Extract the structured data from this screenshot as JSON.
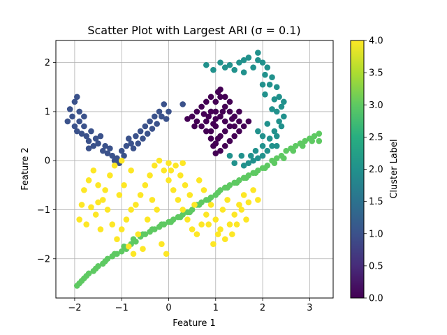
{
  "chart_data": {
    "type": "scatter",
    "title": "Scatter Plot with Largest ARI (σ = 0.1)",
    "xlabel": "Feature 1",
    "ylabel": "Feature 2",
    "xlim": [
      -2.4,
      3.5
    ],
    "ylim": [
      -2.8,
      2.45
    ],
    "xticks": [
      -2,
      -1,
      0,
      1,
      2,
      3
    ],
    "yticks": [
      -2,
      -1,
      0,
      1,
      2
    ],
    "grid": true,
    "colorbar": {
      "label": "Cluster Label",
      "range": [
        0.0,
        4.0
      ],
      "ticks": [
        0.0,
        0.5,
        1.0,
        1.5,
        2.0,
        2.5,
        3.0,
        3.5,
        4.0
      ],
      "colormap": "viridis"
    },
    "cluster_colors": {
      "0": "#440154",
      "1": "#3b528b",
      "2": "#21918c",
      "3": "#5ec962",
      "4": "#fde725"
    },
    "series": [
      {
        "label": 0,
        "points": [
          [
            0.8,
            0.8
          ],
          [
            0.9,
            1.0
          ],
          [
            1.0,
            1.2
          ],
          [
            1.05,
            1.4
          ],
          [
            1.1,
            1.3
          ],
          [
            1.2,
            1.1
          ],
          [
            1.3,
            1.0
          ],
          [
            1.4,
            0.9
          ],
          [
            1.5,
            0.8
          ],
          [
            1.6,
            0.7
          ],
          [
            1.5,
            0.6
          ],
          [
            1.4,
            0.5
          ],
          [
            1.3,
            0.4
          ],
          [
            1.2,
            0.3
          ],
          [
            1.1,
            0.2
          ],
          [
            1.0,
            0.15
          ],
          [
            0.95,
            0.3
          ],
          [
            0.9,
            0.45
          ],
          [
            0.8,
            0.6
          ],
          [
            0.7,
            0.7
          ],
          [
            0.6,
            0.8
          ],
          [
            0.5,
            0.9
          ],
          [
            0.6,
            1.0
          ],
          [
            0.7,
            1.1
          ],
          [
            0.8,
            1.2
          ],
          [
            0.9,
            1.3
          ],
          [
            1.0,
            1.0
          ],
          [
            1.1,
            0.9
          ],
          [
            1.2,
            0.8
          ],
          [
            1.3,
            0.7
          ],
          [
            1.0,
            0.7
          ],
          [
            0.9,
            0.6
          ],
          [
            1.1,
            0.5
          ],
          [
            1.2,
            0.6
          ],
          [
            1.4,
            0.7
          ],
          [
            1.5,
            1.0
          ],
          [
            1.3,
            1.2
          ],
          [
            1.2,
            1.3
          ],
          [
            0.85,
            0.9
          ],
          [
            1.0,
            0.85
          ],
          [
            0.75,
            0.95
          ],
          [
            1.15,
            1.0
          ],
          [
            1.35,
            0.85
          ],
          [
            1.05,
            0.45
          ],
          [
            0.95,
            0.75
          ],
          [
            0.4,
            0.85
          ],
          [
            0.55,
            0.7
          ],
          [
            1.7,
            0.8
          ],
          [
            1.1,
            1.45
          ],
          [
            1.0,
            0.35
          ]
        ]
      },
      {
        "label": 1,
        "points": [
          [
            -2.1,
            1.05
          ],
          [
            -2.0,
            1.2
          ],
          [
            -1.95,
            1.3
          ],
          [
            -2.05,
            0.9
          ],
          [
            -1.9,
            0.8
          ],
          [
            -1.8,
            0.7
          ],
          [
            -1.75,
            0.5
          ],
          [
            -1.7,
            0.4
          ],
          [
            -1.6,
            0.3
          ],
          [
            -1.5,
            0.35
          ],
          [
            -1.4,
            0.2
          ],
          [
            -1.3,
            0.15
          ],
          [
            -1.2,
            0.1
          ],
          [
            -1.1,
            0.05
          ],
          [
            -1.0,
            0.2
          ],
          [
            -0.9,
            0.3
          ],
          [
            -0.8,
            0.35
          ],
          [
            -0.7,
            0.5
          ],
          [
            -0.6,
            0.6
          ],
          [
            -0.5,
            0.7
          ],
          [
            -0.4,
            0.8
          ],
          [
            -0.3,
            0.9
          ],
          [
            -0.2,
            1.0
          ],
          [
            -0.1,
            1.15
          ],
          [
            0.0,
            1.0
          ],
          [
            -0.05,
            0.85
          ],
          [
            -1.85,
            0.55
          ],
          [
            -1.65,
            0.6
          ],
          [
            -1.55,
            0.45
          ],
          [
            -1.45,
            0.5
          ],
          [
            -1.35,
            0.3
          ],
          [
            -1.25,
            0.25
          ],
          [
            -1.15,
            0.0
          ],
          [
            -0.95,
            0.1
          ],
          [
            -0.85,
            0.45
          ],
          [
            -0.65,
            0.35
          ],
          [
            -0.55,
            0.45
          ],
          [
            -0.45,
            0.55
          ],
          [
            -0.35,
            0.65
          ],
          [
            -0.25,
            0.75
          ],
          [
            -2.15,
            0.8
          ],
          [
            -1.95,
            0.6
          ],
          [
            -1.9,
            1.0
          ],
          [
            -1.8,
            0.9
          ],
          [
            -0.15,
            0.9
          ],
          [
            -1.05,
            -0.05
          ],
          [
            -0.75,
            0.25
          ],
          [
            0.3,
            1.15
          ],
          [
            -2.0,
            0.7
          ],
          [
            -1.7,
            0.25
          ]
        ]
      },
      {
        "label": 2,
        "points": [
          [
            1.5,
            2.0
          ],
          [
            1.7,
            2.1
          ],
          [
            1.9,
            2.05
          ],
          [
            2.0,
            2.0
          ],
          [
            2.1,
            1.9
          ],
          [
            2.2,
            1.7
          ],
          [
            2.3,
            1.5
          ],
          [
            2.35,
            1.3
          ],
          [
            2.4,
            1.1
          ],
          [
            2.45,
            0.9
          ],
          [
            2.4,
            0.7
          ],
          [
            2.3,
            0.5
          ],
          [
            2.2,
            0.3
          ],
          [
            2.1,
            0.2
          ],
          [
            2.0,
            0.1
          ],
          [
            1.9,
            0.05
          ],
          [
            1.8,
            0.0
          ],
          [
            1.7,
            -0.05
          ],
          [
            1.6,
            -0.1
          ],
          [
            1.3,
            1.95
          ],
          [
            1.2,
            1.9
          ],
          [
            1.1,
            2.0
          ],
          [
            1.4,
            1.85
          ],
          [
            1.6,
            1.8
          ],
          [
            1.8,
            1.9
          ],
          [
            2.05,
            1.75
          ],
          [
            2.15,
            1.55
          ],
          [
            2.25,
            1.25
          ],
          [
            2.3,
            1.0
          ],
          [
            2.35,
            0.8
          ],
          [
            2.25,
            0.6
          ],
          [
            2.15,
            0.45
          ],
          [
            2.0,
            0.3
          ],
          [
            1.85,
            0.2
          ],
          [
            1.75,
            0.1
          ],
          [
            0.95,
            1.85
          ],
          [
            0.8,
            1.95
          ],
          [
            1.9,
            0.6
          ],
          [
            2.05,
            1.35
          ],
          [
            1.55,
            0.1
          ],
          [
            2.0,
            1.55
          ],
          [
            2.1,
            0.75
          ],
          [
            1.3,
            0.1
          ],
          [
            1.4,
            -0.05
          ],
          [
            2.2,
            1.05
          ],
          [
            1.9,
            2.2
          ],
          [
            1.6,
            2.05
          ],
          [
            2.45,
            1.2
          ],
          [
            2.3,
            0.3
          ],
          [
            2.0,
            0.5
          ]
        ]
      },
      {
        "label": 3,
        "points": [
          [
            -1.9,
            -2.5
          ],
          [
            -1.85,
            -2.45
          ],
          [
            -1.8,
            -2.4
          ],
          [
            -1.7,
            -2.3
          ],
          [
            -1.6,
            -2.25
          ],
          [
            -1.5,
            -2.15
          ],
          [
            -1.4,
            -2.1
          ],
          [
            -1.3,
            -2.0
          ],
          [
            -1.2,
            -1.95
          ],
          [
            -1.1,
            -1.9
          ],
          [
            -1.0,
            -1.85
          ],
          [
            -0.9,
            -1.8
          ],
          [
            -0.8,
            -1.7
          ],
          [
            -0.7,
            -1.65
          ],
          [
            -0.6,
            -1.55
          ],
          [
            -0.5,
            -1.5
          ],
          [
            -0.4,
            -1.45
          ],
          [
            -0.3,
            -1.4
          ],
          [
            -0.2,
            -1.35
          ],
          [
            -0.1,
            -1.3
          ],
          [
            0.0,
            -1.25
          ],
          [
            0.1,
            -1.2
          ],
          [
            0.2,
            -1.15
          ],
          [
            0.3,
            -1.1
          ],
          [
            0.4,
            -1.05
          ],
          [
            0.5,
            -1.0
          ],
          [
            0.6,
            -0.9
          ],
          [
            0.7,
            -0.85
          ],
          [
            0.8,
            -0.8
          ],
          [
            0.9,
            -0.75
          ],
          [
            1.0,
            -0.7
          ],
          [
            1.1,
            -0.6
          ],
          [
            1.2,
            -0.55
          ],
          [
            1.3,
            -0.5
          ],
          [
            1.4,
            -0.45
          ],
          [
            1.5,
            -0.4
          ],
          [
            1.6,
            -0.35
          ],
          [
            1.7,
            -0.3
          ],
          [
            1.8,
            -0.25
          ],
          [
            1.9,
            -0.2
          ],
          [
            2.0,
            -0.15
          ],
          [
            2.1,
            -0.1
          ],
          [
            2.2,
            0.0
          ],
          [
            2.3,
            0.05
          ],
          [
            2.4,
            0.1
          ],
          [
            2.5,
            0.2
          ],
          [
            2.6,
            0.25
          ],
          [
            2.7,
            0.3
          ],
          [
            2.8,
            0.35
          ],
          [
            2.9,
            0.4
          ],
          [
            3.0,
            0.45
          ],
          [
            3.1,
            0.5
          ],
          [
            3.2,
            0.55
          ],
          [
            -1.95,
            -2.55
          ],
          [
            -1.75,
            -2.35
          ],
          [
            -1.55,
            -2.2
          ],
          [
            -1.35,
            -2.05
          ],
          [
            -1.15,
            -1.9
          ],
          [
            -0.95,
            -1.75
          ],
          [
            -0.75,
            -1.6
          ],
          [
            -0.55,
            -1.5
          ],
          [
            -0.35,
            -1.4
          ],
          [
            -0.15,
            -1.3
          ],
          [
            0.05,
            -1.25
          ],
          [
            0.25,
            -1.15
          ],
          [
            0.45,
            -1.05
          ],
          [
            0.65,
            -0.9
          ],
          [
            0.85,
            -0.8
          ],
          [
            1.05,
            -0.65
          ],
          [
            1.25,
            -0.55
          ],
          [
            1.45,
            -0.45
          ],
          [
            1.65,
            -0.35
          ],
          [
            1.85,
            -0.25
          ],
          [
            2.05,
            -0.15
          ],
          [
            2.25,
            -0.05
          ],
          [
            2.45,
            0.05
          ],
          [
            2.65,
            0.2
          ],
          [
            2.85,
            0.3
          ],
          [
            3.05,
            0.4
          ],
          [
            3.2,
            0.4
          ]
        ]
      },
      {
        "label": 4,
        "points": [
          [
            -1.8,
            -0.6
          ],
          [
            -1.7,
            -0.4
          ],
          [
            -1.6,
            -0.2
          ],
          [
            -1.5,
            -0.5
          ],
          [
            -1.4,
            -0.8
          ],
          [
            -1.3,
            -1.0
          ],
          [
            -1.2,
            -1.3
          ],
          [
            -1.1,
            -1.6
          ],
          [
            -1.0,
            -1.4
          ],
          [
            -0.9,
            -1.2
          ],
          [
            -0.8,
            -1.0
          ],
          [
            -0.7,
            -0.9
          ],
          [
            -0.6,
            -0.7
          ],
          [
            -0.5,
            -0.5
          ],
          [
            -0.4,
            -0.3
          ],
          [
            -0.3,
            -0.1
          ],
          [
            -0.2,
            0.0
          ],
          [
            -0.1,
            -0.2
          ],
          [
            0.0,
            -0.4
          ],
          [
            0.1,
            -0.6
          ],
          [
            0.2,
            -0.8
          ],
          [
            0.3,
            -1.0
          ],
          [
            0.4,
            -1.2
          ],
          [
            0.5,
            -1.4
          ],
          [
            0.6,
            -1.5
          ],
          [
            0.7,
            -1.3
          ],
          [
            0.8,
            -1.1
          ],
          [
            0.9,
            -0.9
          ],
          [
            1.0,
            -1.2
          ],
          [
            1.1,
            -1.4
          ],
          [
            1.2,
            -1.6
          ],
          [
            1.3,
            -1.3
          ],
          [
            1.4,
            -1.1
          ],
          [
            1.5,
            -0.9
          ],
          [
            1.6,
            -0.7
          ],
          [
            1.7,
            -0.85
          ],
          [
            1.8,
            -0.6
          ],
          [
            1.9,
            -0.8
          ],
          [
            -1.9,
            -1.2
          ],
          [
            -1.85,
            -0.9
          ],
          [
            -1.75,
            -1.3
          ],
          [
            -1.65,
            -0.95
          ],
          [
            -1.55,
            -1.1
          ],
          [
            -1.45,
            -1.4
          ],
          [
            -1.35,
            -0.6
          ],
          [
            -1.25,
            -0.3
          ],
          [
            -1.15,
            -0.1
          ],
          [
            -1.05,
            -0.7
          ],
          [
            -0.95,
            -0.5
          ],
          [
            -0.85,
            -1.75
          ],
          [
            -0.75,
            -1.9
          ],
          [
            -0.65,
            -1.5
          ],
          [
            -0.55,
            -1.8
          ],
          [
            -0.45,
            -1.2
          ],
          [
            -0.35,
            -0.8
          ],
          [
            -0.25,
            -1.0
          ],
          [
            -0.15,
            -1.7
          ],
          [
            -0.05,
            -1.9
          ],
          [
            0.05,
            -0.2
          ],
          [
            0.15,
            -0.1
          ],
          [
            0.25,
            -0.3
          ],
          [
            0.35,
            -0.5
          ],
          [
            0.45,
            -0.7
          ],
          [
            0.55,
            -0.9
          ],
          [
            0.65,
            -0.4
          ],
          [
            0.75,
            -0.6
          ],
          [
            0.85,
            -1.3
          ],
          [
            0.95,
            -1.7
          ],
          [
            1.05,
            -1.5
          ],
          [
            1.15,
            -1.0
          ],
          [
            1.25,
            -0.8
          ],
          [
            1.35,
            -1.5
          ],
          [
            1.45,
            -1.3
          ],
          [
            1.55,
            -1.0
          ],
          [
            1.65,
            -1.2
          ],
          [
            -1.0,
            0.0
          ],
          [
            -0.8,
            -0.2
          ],
          [
            0.0,
            -0.05
          ],
          [
            0.3,
            -0.05
          ],
          [
            -1.5,
            -0.85
          ]
        ]
      }
    ]
  }
}
